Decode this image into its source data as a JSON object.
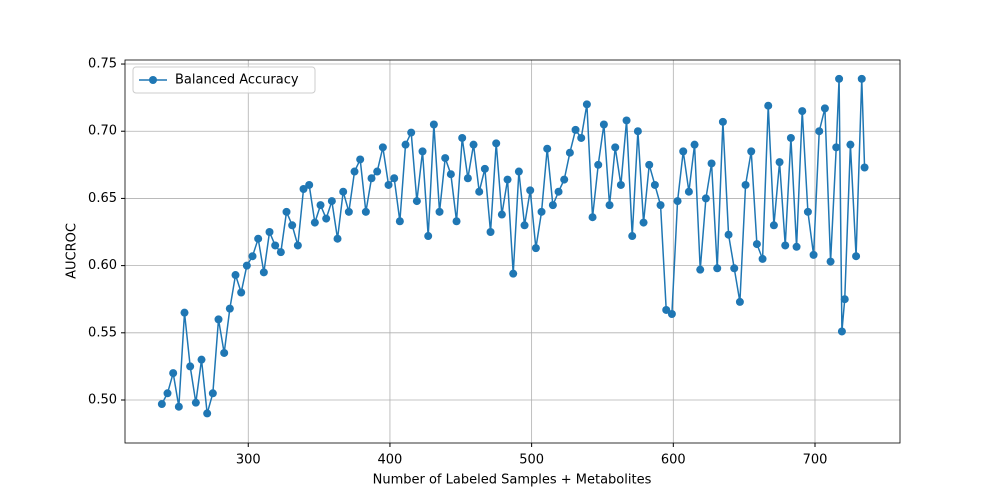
{
  "chart_data": {
    "type": "line",
    "xlabel": "Number of Labeled Samples + Metabolites",
    "ylabel": "AUCROC",
    "x": [
      239,
      243,
      247,
      251,
      255,
      259,
      263,
      267,
      271,
      275,
      279,
      283,
      287,
      291,
      295,
      299,
      303,
      307,
      311,
      315,
      319,
      323,
      327,
      331,
      335,
      339,
      343,
      347,
      351,
      355,
      359,
      363,
      367,
      371,
      375,
      379,
      383,
      387,
      391,
      395,
      399,
      403,
      407,
      411,
      415,
      419,
      423,
      427,
      431,
      435,
      439,
      443,
      447,
      451,
      455,
      459,
      463,
      467,
      471,
      475,
      479,
      483,
      487,
      491,
      495,
      499,
      503,
      507,
      511,
      515,
      519,
      523,
      527,
      531,
      535,
      539,
      543,
      547,
      551,
      555,
      559,
      563,
      567,
      571,
      575,
      579,
      583,
      587,
      591,
      595,
      599,
      603,
      607,
      611,
      615,
      619,
      623,
      627,
      631,
      635,
      639,
      643,
      647,
      651,
      655,
      659,
      663,
      667,
      671,
      675,
      679,
      683,
      687,
      691,
      695,
      699,
      703,
      707,
      711,
      715,
      717,
      719,
      721,
      725,
      729,
      733,
      735
    ],
    "series": [
      {
        "name": "Balanced Accuracy",
        "color": "#1f77b4",
        "values": [
          0.497,
          0.505,
          0.52,
          0.495,
          0.565,
          0.525,
          0.498,
          0.53,
          0.49,
          0.505,
          0.56,
          0.535,
          0.568,
          0.593,
          0.58,
          0.6,
          0.607,
          0.62,
          0.595,
          0.625,
          0.615,
          0.61,
          0.64,
          0.63,
          0.615,
          0.657,
          0.66,
          0.632,
          0.645,
          0.635,
          0.648,
          0.62,
          0.655,
          0.64,
          0.67,
          0.679,
          0.64,
          0.665,
          0.67,
          0.688,
          0.66,
          0.665,
          0.633,
          0.69,
          0.699,
          0.648,
          0.685,
          0.622,
          0.705,
          0.64,
          0.68,
          0.668,
          0.633,
          0.695,
          0.665,
          0.69,
          0.655,
          0.672,
          0.625,
          0.691,
          0.638,
          0.664,
          0.594,
          0.67,
          0.63,
          0.656,
          0.613,
          0.64,
          0.687,
          0.645,
          0.655,
          0.664,
          0.684,
          0.701,
          0.695,
          0.72,
          0.636,
          0.675,
          0.705,
          0.645,
          0.688,
          0.66,
          0.708,
          0.622,
          0.7,
          0.632,
          0.675,
          0.66,
          0.645,
          0.567,
          0.564,
          0.648,
          0.685,
          0.655,
          0.69,
          0.597,
          0.65,
          0.676,
          0.598,
          0.707,
          0.623,
          0.598,
          0.573,
          0.66,
          0.685,
          0.616,
          0.605,
          0.719,
          0.63,
          0.677,
          0.615,
          0.695,
          0.614,
          0.715,
          0.64,
          0.608,
          0.7,
          0.717,
          0.603,
          0.688,
          0.739,
          0.551,
          0.575,
          0.69,
          0.607,
          0.739,
          0.673
        ]
      }
    ],
    "xlim": [
      213,
      760
    ],
    "xticks": [
      300,
      400,
      500,
      600,
      700
    ],
    "ylim": [
      0.468,
      0.753
    ],
    "yticks": [
      {
        "value": 0.5,
        "label": "0.50"
      },
      {
        "value": 0.55,
        "label": "0.55"
      },
      {
        "value": 0.6,
        "label": "0.60"
      },
      {
        "value": 0.65,
        "label": "0.65"
      },
      {
        "value": 0.7,
        "label": "0.70"
      },
      {
        "value": 0.75,
        "label": "0.75"
      }
    ],
    "grid": true,
    "legend": "upper-left"
  }
}
